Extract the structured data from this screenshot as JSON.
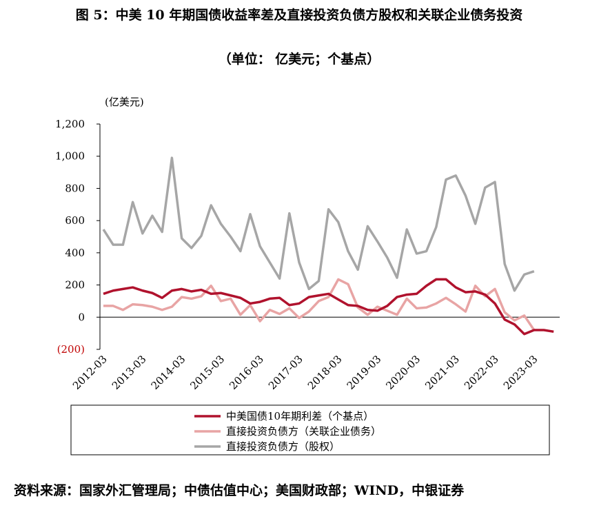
{
  "chart_data": {
    "type": "line",
    "title": "图 5：中美 10 年期国债收益率差及直接投资负债方股权和关联企业债务投资",
    "subtitle": "（单位：  亿美元；个基点）",
    "y_unit_label": "(亿美元)",
    "source": "资料来源：国家外汇管理局；中债估值中心；美国财政部；WIND，中银证券",
    "categories": [
      "2012-03",
      null,
      null,
      null,
      "2013-03",
      null,
      null,
      null,
      "2014-03",
      null,
      null,
      null,
      "2015-03",
      null,
      null,
      null,
      "2016-03",
      null,
      null,
      null,
      "2017-03",
      null,
      null,
      null,
      "2018-03",
      null,
      null,
      null,
      "2019-03",
      null,
      null,
      null,
      "2020-03",
      null,
      null,
      null,
      "2021-03",
      null,
      null,
      null,
      "2022-03",
      null,
      null,
      null,
      "2023-03",
      null,
      null
    ],
    "series": [
      {
        "name": "中美国债10年期利差（个基点）",
        "color": "#b0122d",
        "values": [
          145,
          165,
          175,
          185,
          165,
          150,
          120,
          165,
          175,
          160,
          170,
          145,
          150,
          135,
          120,
          85,
          95,
          115,
          120,
          75,
          85,
          125,
          135,
          145,
          110,
          75,
          70,
          45,
          40,
          70,
          125,
          140,
          145,
          195,
          235,
          235,
          185,
          155,
          160,
          140,
          85,
          -15,
          -45,
          -105,
          -80,
          -80,
          -90
        ]
      },
      {
        "name": "直接投资负债方（关联企业债务）",
        "color": "#e8a4a4",
        "values": [
          70,
          70,
          45,
          80,
          75,
          65,
          45,
          65,
          125,
          115,
          130,
          195,
          100,
          115,
          15,
          75,
          -25,
          45,
          20,
          55,
          -5,
          35,
          100,
          125,
          235,
          205,
          60,
          15,
          65,
          40,
          15,
          115,
          55,
          60,
          85,
          120,
          80,
          35,
          195,
          130,
          175,
          30,
          -20,
          10,
          -80,
          null,
          null
        ]
      },
      {
        "name": "直接投资负债方（股权）",
        "color": "#a6a6a6",
        "values": [
          545,
          450,
          450,
          715,
          520,
          630,
          530,
          990,
          490,
          430,
          505,
          695,
          580,
          500,
          410,
          640,
          440,
          340,
          240,
          645,
          340,
          175,
          225,
          670,
          590,
          410,
          295,
          565,
          470,
          370,
          245,
          545,
          395,
          410,
          560,
          855,
          880,
          755,
          580,
          805,
          840,
          330,
          165,
          265,
          285,
          null,
          null
        ]
      }
    ],
    "ylim": [
      -200,
      1200
    ],
    "yticks": [
      {
        "value": -200,
        "label": "(200)"
      },
      0,
      200,
      400,
      600,
      800,
      {
        "value": 1000,
        "label": "1,000"
      },
      {
        "value": 1200,
        "label": "1,200"
      }
    ]
  }
}
